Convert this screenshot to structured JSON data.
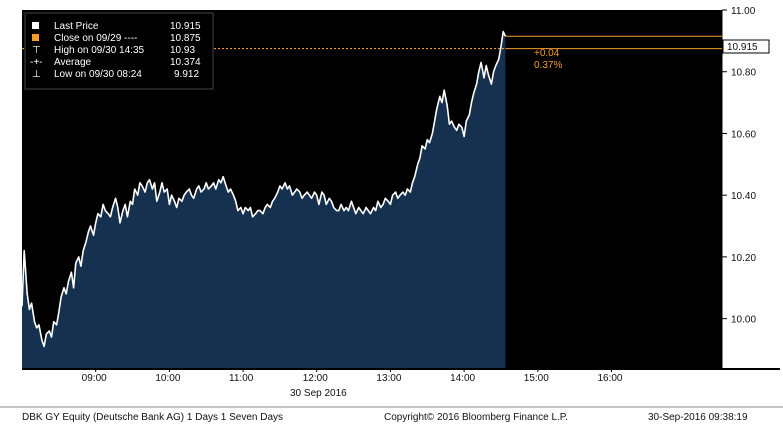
{
  "chart_data": {
    "type": "area",
    "title": "",
    "xlabel": "30 Sep 2016",
    "ylabel": "",
    "ylim": [
      9.84,
      11.0
    ],
    "y_ticks": [
      "10.00",
      "10.20",
      "10.40",
      "10.60",
      "10.80",
      "11.00"
    ],
    "y_tick_values": [
      10.0,
      10.2,
      10.4,
      10.6,
      10.8,
      11.0
    ],
    "x_ticks": [
      "09:00",
      "10:00",
      "11:00",
      "12:00",
      "13:00",
      "14:00",
      "15:00",
      "16:00"
    ],
    "x_tick_hours": [
      9,
      10,
      11,
      12,
      13,
      14,
      15,
      16
    ],
    "x_range_hours": [
      8.0,
      17.5
    ],
    "grid": false,
    "legend_position": "top-left",
    "series": [
      {
        "name": "Last Price",
        "x_hours": [
          8.0,
          8.03,
          8.07,
          8.1,
          8.13,
          8.17,
          8.2,
          8.23,
          8.27,
          8.3,
          8.33,
          8.37,
          8.4,
          8.43,
          8.47,
          8.5,
          8.53,
          8.57,
          8.6,
          8.63,
          8.67,
          8.7,
          8.73,
          8.77,
          8.8,
          8.83,
          8.87,
          8.9,
          8.93,
          8.97,
          9.0,
          9.03,
          9.07,
          9.1,
          9.13,
          9.17,
          9.2,
          9.23,
          9.27,
          9.3,
          9.33,
          9.37,
          9.4,
          9.43,
          9.47,
          9.5,
          9.53,
          9.57,
          9.6,
          9.63,
          9.67,
          9.7,
          9.73,
          9.77,
          9.8,
          9.83,
          9.87,
          9.9,
          9.93,
          9.97,
          10.0,
          10.03,
          10.07,
          10.1,
          10.13,
          10.17,
          10.2,
          10.23,
          10.27,
          10.3,
          10.33,
          10.37,
          10.4,
          10.43,
          10.47,
          10.5,
          10.53,
          10.57,
          10.6,
          10.63,
          10.67,
          10.7,
          10.73,
          10.77,
          10.8,
          10.83,
          10.87,
          10.9,
          10.93,
          10.97,
          11.0,
          11.03,
          11.07,
          11.1,
          11.13,
          11.17,
          11.2,
          11.23,
          11.27,
          11.3,
          11.33,
          11.37,
          11.4,
          11.43,
          11.47,
          11.5,
          11.53,
          11.57,
          11.6,
          11.63,
          11.67,
          11.7,
          11.73,
          11.77,
          11.8,
          11.83,
          11.87,
          11.9,
          11.93,
          11.97,
          12.0,
          12.03,
          12.07,
          12.1,
          12.13,
          12.17,
          12.2,
          12.23,
          12.27,
          12.3,
          12.33,
          12.37,
          12.4,
          12.43,
          12.47,
          12.5,
          12.53,
          12.57,
          12.6,
          12.63,
          12.67,
          12.7,
          12.73,
          12.77,
          12.8,
          12.83,
          12.87,
          12.9,
          12.93,
          12.97,
          13.0,
          13.03,
          13.07,
          13.1,
          13.13,
          13.17,
          13.2,
          13.23,
          13.27,
          13.3,
          13.33,
          13.37,
          13.4,
          13.43,
          13.47,
          13.5,
          13.53,
          13.57,
          13.6,
          13.63,
          13.67,
          13.7,
          13.73,
          13.77,
          13.8,
          13.83,
          13.87,
          13.9,
          13.93,
          13.97,
          14.0,
          14.03,
          14.07,
          14.1,
          14.13,
          14.17,
          14.2,
          14.23,
          14.27,
          14.3,
          14.33,
          14.37,
          14.4,
          14.43,
          14.47,
          14.5,
          14.53,
          14.56
        ],
        "values": [
          10.04,
          10.22,
          10.08,
          10.03,
          10.05,
          9.99,
          9.97,
          9.98,
          9.93,
          9.91,
          9.95,
          9.96,
          9.94,
          9.99,
          9.98,
          10.02,
          10.07,
          10.1,
          10.08,
          10.12,
          10.15,
          10.1,
          10.18,
          10.2,
          10.17,
          10.22,
          10.25,
          10.28,
          10.3,
          10.27,
          10.31,
          10.34,
          10.33,
          10.37,
          10.35,
          10.34,
          10.33,
          10.36,
          10.39,
          10.36,
          10.31,
          10.35,
          10.37,
          10.33,
          10.38,
          10.37,
          10.42,
          10.4,
          10.44,
          10.43,
          10.41,
          10.44,
          10.45,
          10.42,
          10.44,
          10.38,
          10.41,
          10.44,
          10.41,
          10.42,
          10.37,
          10.4,
          10.38,
          10.36,
          10.39,
          10.38,
          10.4,
          10.41,
          10.42,
          10.4,
          10.39,
          10.42,
          10.43,
          10.41,
          10.42,
          10.44,
          10.42,
          10.43,
          10.44,
          10.42,
          10.45,
          10.44,
          10.46,
          10.43,
          10.41,
          10.42,
          10.4,
          10.38,
          10.35,
          10.36,
          10.34,
          10.36,
          10.35,
          10.36,
          10.33,
          10.34,
          10.35,
          10.35,
          10.34,
          10.36,
          10.37,
          10.36,
          10.38,
          10.39,
          10.41,
          10.43,
          10.42,
          10.44,
          10.42,
          10.43,
          10.4,
          10.41,
          10.42,
          10.41,
          10.39,
          10.4,
          10.41,
          10.4,
          10.39,
          10.41,
          10.4,
          10.37,
          10.41,
          10.4,
          10.37,
          10.39,
          10.38,
          10.36,
          10.35,
          10.35,
          10.37,
          10.35,
          10.36,
          10.35,
          10.38,
          10.36,
          10.34,
          10.36,
          10.35,
          10.34,
          10.36,
          10.35,
          10.34,
          10.36,
          10.35,
          10.38,
          10.36,
          10.37,
          10.39,
          10.38,
          10.37,
          10.4,
          10.41,
          10.39,
          10.4,
          10.41,
          10.4,
          10.42,
          10.41,
          10.44,
          10.46,
          10.5,
          10.52,
          10.56,
          10.55,
          10.58,
          10.57,
          10.6,
          10.64,
          10.68,
          10.72,
          10.7,
          10.74,
          10.69,
          10.63,
          10.64,
          10.62,
          10.61,
          10.63,
          10.62,
          10.59,
          10.64,
          10.66,
          10.7,
          10.73,
          10.76,
          10.8,
          10.83,
          10.78,
          10.82,
          10.79,
          10.76,
          10.8,
          10.82,
          10.84,
          10.88,
          10.93,
          10.915
        ]
      },
      {
        "name": "Close on 09/29",
        "value": 10.875
      }
    ],
    "legend": [
      {
        "label": "Last Price",
        "value": "10.915"
      },
      {
        "label": "Close on 09/29 ----",
        "value": "10.875"
      },
      {
        "label": "High on 09/30 14:35",
        "value": "10.93"
      },
      {
        "label": "Average",
        "value": "10.374"
      },
      {
        "label": "Low on 09/30 08:24",
        "value": "9.912"
      }
    ],
    "last_price_label": "10.915",
    "annotations": [
      "+0.04",
      "0.37%"
    ]
  },
  "colors": {
    "background": "#000000",
    "area_fill": "#16314f",
    "line": "#ffffff",
    "close_line": "#f39c2b",
    "accent": "#f39c2b"
  },
  "footer": {
    "left": "DBK GY Equity (Deutsche Bank AG) 1 Days 1 Seven Days",
    "center": "Copyright© 2016 Bloomberg Finance L.P.",
    "right": "30-Sep-2016 09:38:19"
  }
}
